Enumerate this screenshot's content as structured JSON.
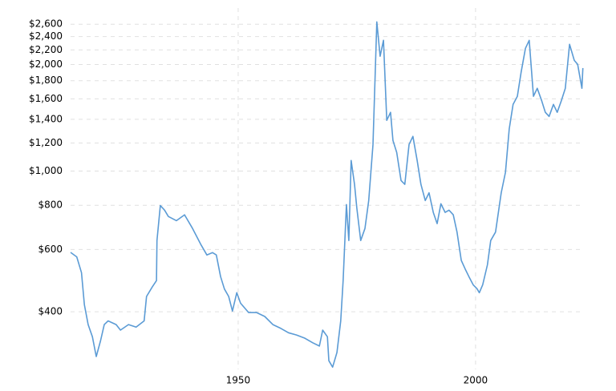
{
  "chart_data": {
    "type": "line",
    "log_y": true,
    "grid": true,
    "xlim": [
      1914.7,
      2023.5
    ],
    "xticks": [
      1950,
      2000
    ],
    "ylim": [
      275,
      2700
    ],
    "yticks": [
      {
        "value": 400,
        "label": "$400"
      },
      {
        "value": 600,
        "label": "$600"
      },
      {
        "value": 800,
        "label": "$800"
      },
      {
        "value": 1000,
        "label": "$1,000"
      },
      {
        "value": 1200,
        "label": "$1,200"
      },
      {
        "value": 1400,
        "label": "$1,400"
      },
      {
        "value": 1600,
        "label": "$1,600"
      },
      {
        "value": 1800,
        "label": "$1,800"
      },
      {
        "value": 2000,
        "label": "$2,000"
      },
      {
        "value": 2200,
        "label": "$2,200"
      },
      {
        "value": 2400,
        "label": "$2,400"
      },
      {
        "value": 2600,
        "label": "$2,600"
      }
    ],
    "x": [
      1914.7,
      1916,
      1917,
      1917.6,
      1918.4,
      1919.3,
      1920.1,
      1921,
      1921.8,
      1922.6,
      1924.3,
      1925.2,
      1926.9,
      1928.5,
      1930.2,
      1930.7,
      1931.9,
      1932.8,
      1932.9,
      1933.6,
      1934.5,
      1935.3,
      1937,
      1938.7,
      1940.4,
      1942.1,
      1943.4,
      1944.6,
      1945.4,
      1946.3,
      1947.1,
      1948,
      1948.8,
      1949.7,
      1950.5,
      1952.2,
      1953.9,
      1955.6,
      1957.3,
      1959,
      1960.6,
      1962.3,
      1964,
      1965.7,
      1967.1,
      1967.8,
      1968.8,
      1969.1,
      1969.9,
      1970.8,
      1971.6,
      1972.1,
      1972.8,
      1973.3,
      1973.8,
      1974.5,
      1975,
      1975.8,
      1976.7,
      1977.5,
      1978.4,
      1979.2,
      1979.9,
      1980.6,
      1981.3,
      1982.1,
      1982.6,
      1983.4,
      1984.3,
      1985.1,
      1986,
      1986.8,
      1987.7,
      1988.5,
      1989.4,
      1990.2,
      1991.1,
      1991.9,
      1992.7,
      1993.6,
      1994.4,
      1995.3,
      1996.1,
      1997,
      1997.8,
      1998.6,
      1999.5,
      2000.3,
      2000.8,
      2001.5,
      2002.5,
      2003.2,
      2004.2,
      2005.4,
      2006.3,
      2007.1,
      2007.9,
      2008.8,
      2009.6,
      2010.5,
      2011.3,
      2012.2,
      2013,
      2013.9,
      2014.7,
      2015.5,
      2016.4,
      2017.2,
      2018.1,
      2018.9,
      2019.8,
      2020.8,
      2021.5,
      2022.4,
      2022.6
    ],
    "series": [
      {
        "color": "#5b9bd5",
        "values": [
          589,
          572,
          516,
          419,
          368,
          340,
          299,
          331,
          368,
          377,
          368,
          355,
          368,
          362,
          377,
          442,
          470,
          490,
          636,
          799,
          775,
          744,
          724,
          752,
          688,
          621,
          579,
          588,
          579,
          503,
          464,
          442,
          402,
          453,
          423,
          398,
          398,
          388,
          368,
          359,
          349,
          344,
          337,
          327,
          320,
          355,
          340,
          291,
          279,
          307,
          377,
          490,
          804,
          636,
          1071,
          917,
          785,
          636,
          688,
          825,
          1186,
          2640,
          2111,
          2342,
          1391,
          1465,
          1221,
          1129,
          940,
          917,
          1189,
          1253,
          1071,
          917,
          825,
          868,
          764,
          710,
          808,
          764,
          775,
          752,
          672,
          559,
          529,
          503,
          477,
          465,
          453,
          477,
          543,
          636,
          672,
          868,
          992,
          1317,
          1543,
          1626,
          1902,
          2223,
          2342,
          1626,
          1713,
          1584,
          1465,
          1427,
          1543,
          1465,
          1584,
          1713,
          2282,
          2054,
          2003,
          1713,
          1955
        ]
      }
    ]
  }
}
